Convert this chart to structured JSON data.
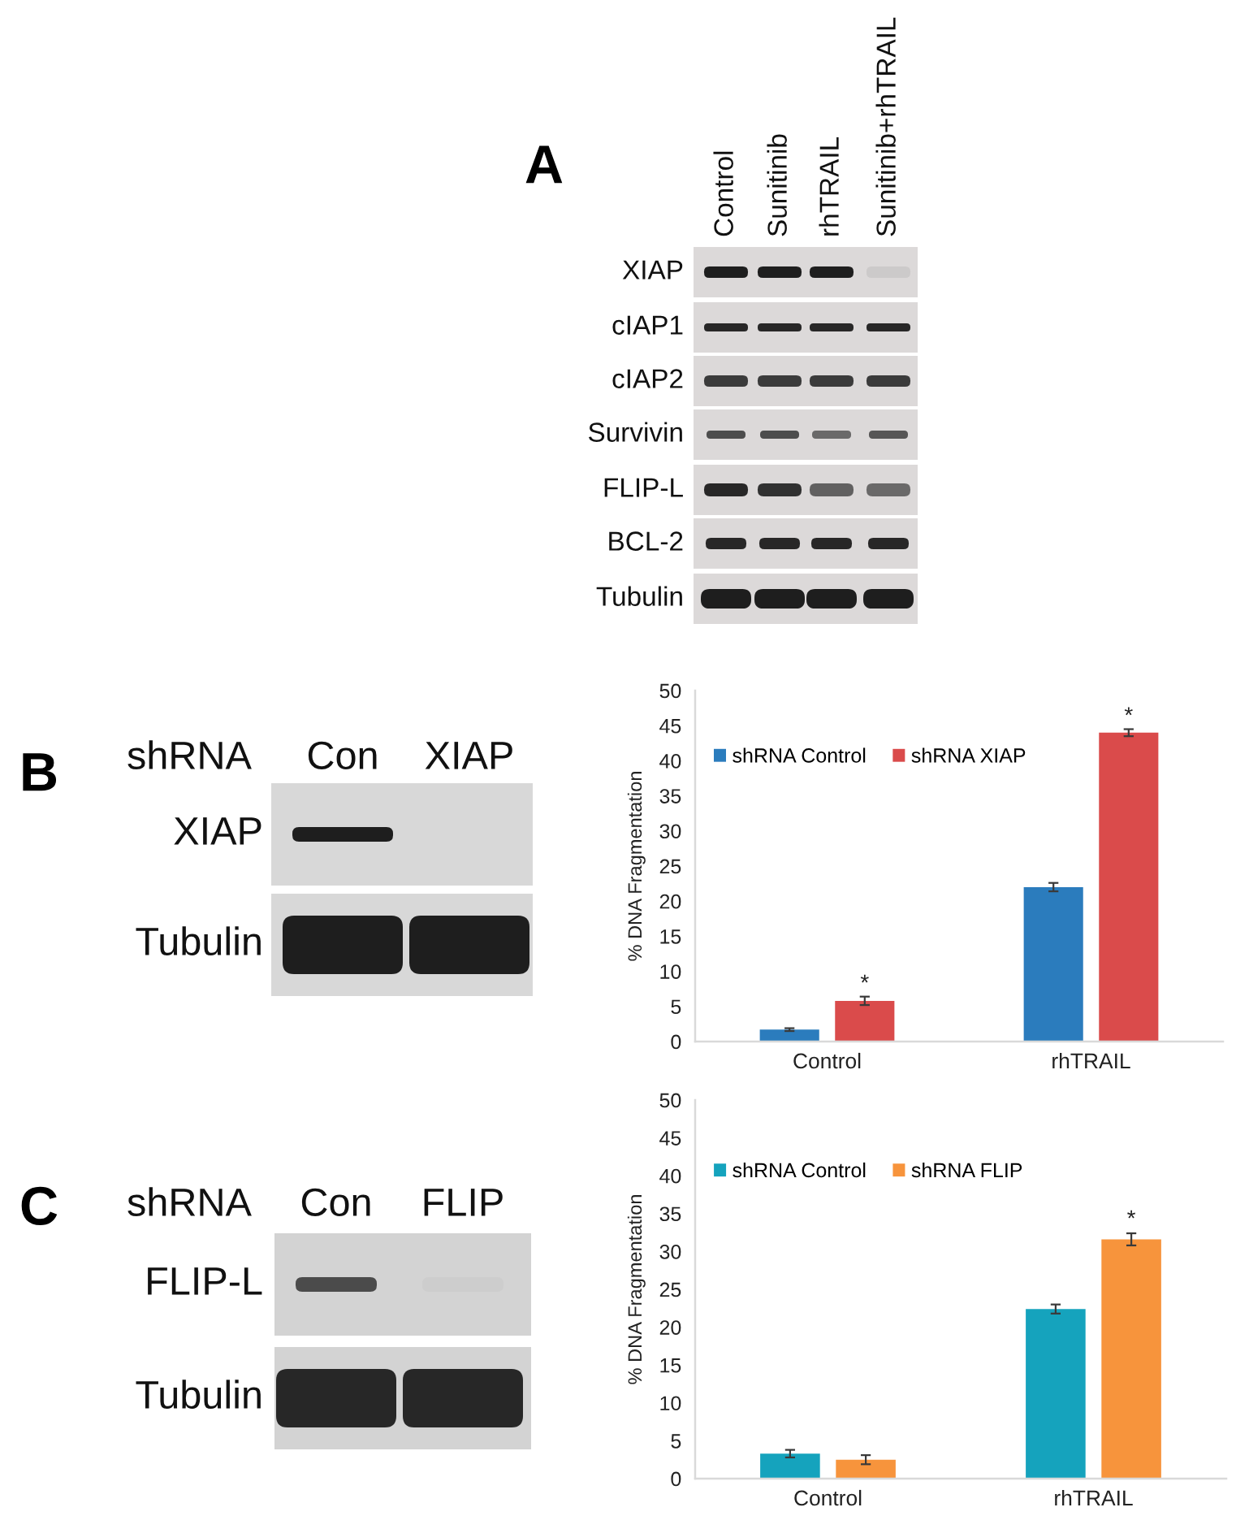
{
  "chart_data": [
    {
      "type": "other",
      "title": "A",
      "categories": [
        "Control",
        "Sunitinib",
        "rhTRAIL",
        "Sunitinib+rhTRAIL"
      ],
      "y_categories": [
        "XIAP",
        "cIAP1",
        "cIAP2",
        "Survivin",
        "FLIP-L",
        "BCL-2",
        "Tubulin"
      ]
    },
    {
      "type": "other",
      "title": "B",
      "xlabel": "shRNA",
      "categories": [
        "Con",
        "XIAP"
      ],
      "y_categories": [
        "XIAP",
        "Tubulin"
      ]
    },
    {
      "type": "bar",
      "categories": [
        "Control",
        "rhTRAIL"
      ],
      "ylabel": "% DNA Fragmentation",
      "ylim": [
        0,
        50
      ],
      "yticks": [
        0,
        5,
        10,
        15,
        20,
        25,
        30,
        35,
        40,
        45,
        50
      ],
      "legend": "top left",
      "series": [
        {
          "name": "shRNA Control",
          "color": "#2b7cbd",
          "values": [
            1.7,
            22.0
          ],
          "errors": [
            0.2,
            0.6
          ]
        },
        {
          "name": "shRNA XIAP",
          "color": "#da4b4b",
          "values": [
            5.8,
            44.0
          ],
          "errors": [
            0.6,
            0.5
          ],
          "value_labels": [
            "*",
            "*"
          ]
        }
      ]
    },
    {
      "type": "other",
      "title": "C",
      "xlabel": "shRNA",
      "categories": [
        "Con",
        "FLIP"
      ],
      "y_categories": [
        "FLIP-L",
        "Tubulin"
      ]
    },
    {
      "type": "bar",
      "categories": [
        "Control",
        "rhTRAIL"
      ],
      "ylabel": "% DNA Fragmentation",
      "ylim": [
        0,
        50
      ],
      "yticks": [
        0,
        5,
        10,
        15,
        20,
        25,
        30,
        35,
        40,
        45,
        50
      ],
      "legend": "top left",
      "series": [
        {
          "name": "shRNA Control",
          "color": "#15a3bd",
          "values": [
            3.3,
            22.4
          ],
          "errors": [
            0.5,
            0.6
          ]
        },
        {
          "name": "shRNA FLIP",
          "color": "#f7943c",
          "values": [
            2.5,
            31.6
          ],
          "errors": [
            0.6,
            0.8
          ],
          "value_labels": [
            null,
            "*"
          ]
        }
      ]
    }
  ]
}
